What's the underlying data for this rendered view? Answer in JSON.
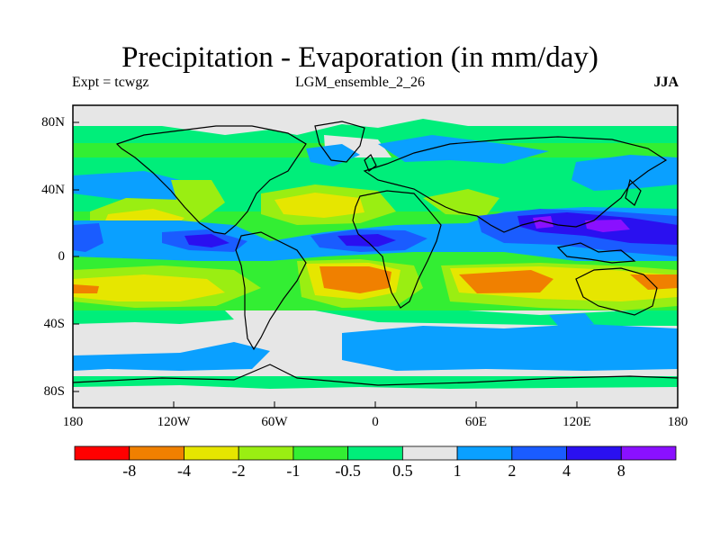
{
  "title": "Precipitation - Evaporation (in mm/day)",
  "experiment_label": "Expt = tcwgz",
  "run_label": "LGM_ensemble_2_26",
  "season_label": "JJA",
  "map": {
    "type": "filled-contour world map",
    "projection": "cylindrical equidistant",
    "lon_range": [
      -180,
      180
    ],
    "lat_range": [
      -90,
      90
    ],
    "lat_ticks": [
      "80N",
      "40N",
      "0",
      "40S",
      "80S"
    ],
    "lon_ticks": [
      "180",
      "120W",
      "60W",
      "0",
      "60E",
      "120E",
      "180"
    ]
  },
  "colorbar": {
    "colors": [
      "#ff0000",
      "#f08000",
      "#e6e600",
      "#9aee12",
      "#33ee33",
      "#00ee7a",
      "#e6e6e6",
      "#0aa0ff",
      "#1a5cff",
      "#2a10f0",
      "#8a10ff"
    ],
    "labels": [
      "-8",
      "-4",
      "-2",
      "-1",
      "-0.5",
      "0.5",
      "1",
      "2",
      "4",
      "8"
    ]
  },
  "colors": {
    "background": "#ffffff",
    "coastline": "#000000"
  }
}
